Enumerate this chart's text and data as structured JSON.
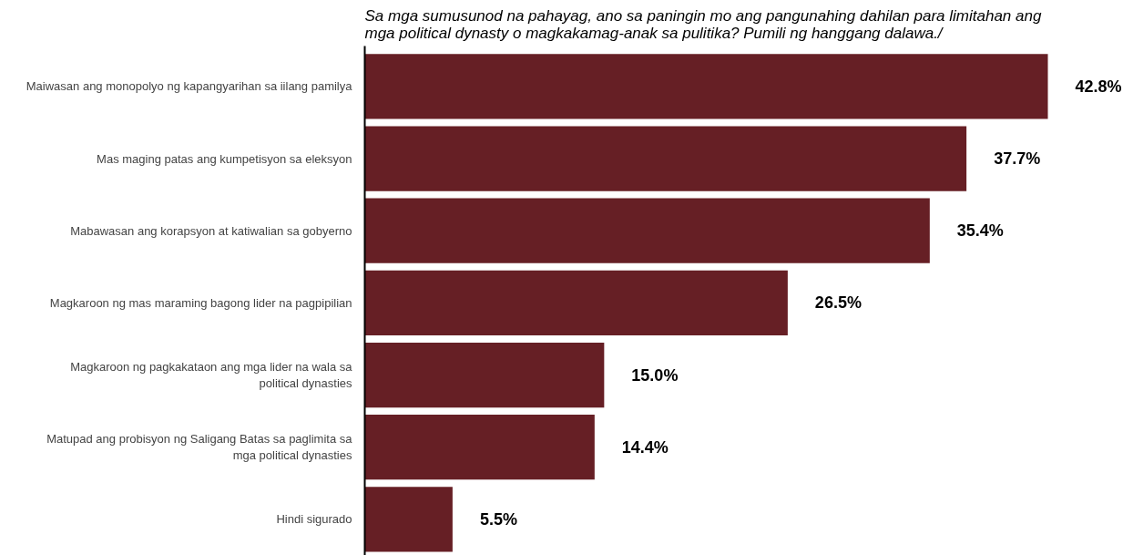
{
  "chart_data": {
    "type": "bar",
    "orientation": "horizontal",
    "title": "Sa mga sumusunod na pahayag, ano sa paningin mo ang pangunahing dahilan para limitahan ang\nmga political dynasty o magkakamag-anak sa pulitika? Pumili ng hanggang dalawa./",
    "categories": [
      "Maiwasan ang monopolyo ng kapangyarihan sa iilang pamilya",
      "Mas maging patas ang kumpetisyon sa eleksyon",
      "Mabawasan ang korapsyon at katiwalian sa gobyerno",
      "Magkaroon ng mas maraming bagong lider na pagpipilian",
      "Magkaroon ng pagkakataon ang mga lider na wala sa\npolitical dynasties",
      "Matupad ang probisyon ng Saligang Batas sa paglimita sa\nmga political dynasties",
      "Hindi sigurado"
    ],
    "values": [
      42.8,
      37.7,
      35.4,
      26.5,
      15.0,
      14.4,
      5.5
    ],
    "value_labels": [
      "42.8%",
      "37.7%",
      "35.4%",
      "26.5%",
      "15.0%",
      "14.4%",
      "5.5%"
    ],
    "color": "#661f25",
    "grid": false,
    "tick_labels": "y"
  }
}
